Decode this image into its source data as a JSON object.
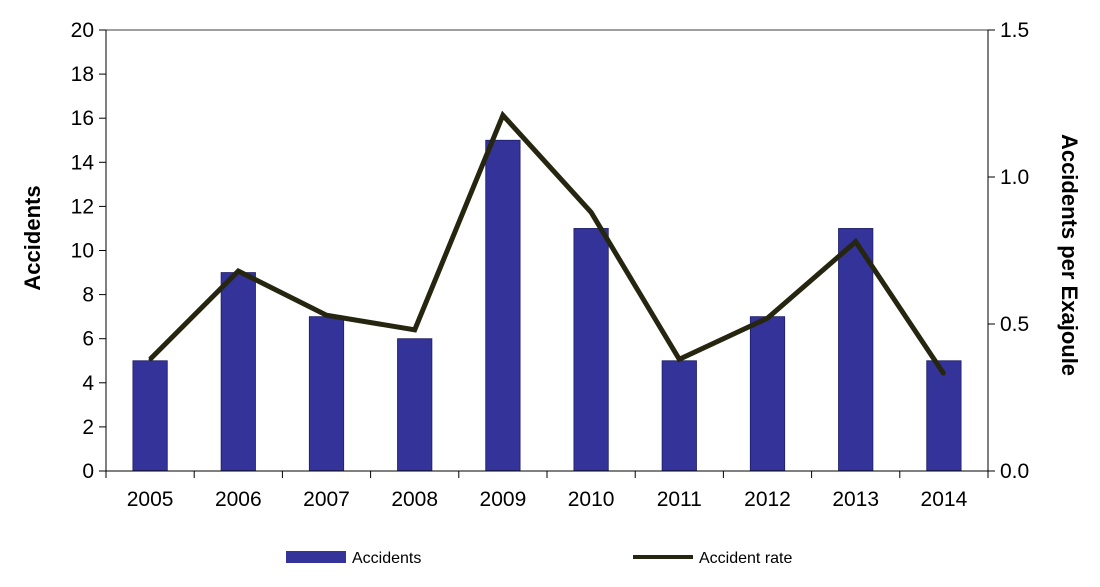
{
  "chart_data": {
    "type": "bar",
    "categories": [
      "2005",
      "2006",
      "2007",
      "2008",
      "2009",
      "2010",
      "2011",
      "2012",
      "2013",
      "2014"
    ],
    "series": [
      {
        "name": "Accidents",
        "type": "bar",
        "axis": "left",
        "color": "#333399",
        "values": [
          5,
          9,
          7,
          6,
          15,
          11,
          5,
          7,
          11,
          5
        ]
      },
      {
        "name": "Accident rate",
        "type": "line",
        "axis": "right",
        "color": "#262610",
        "values": [
          0.38,
          0.68,
          0.53,
          0.48,
          1.21,
          0.88,
          0.38,
          0.52,
          0.78,
          0.33
        ]
      }
    ],
    "ylabel": "Accidents",
    "ylabel_right": "Accidents per Exajoule",
    "ylim": [
      0,
      20
    ],
    "ylim_right": [
      0,
      1.5
    ],
    "yticks": [
      "0",
      "2",
      "4",
      "6",
      "8",
      "10",
      "12",
      "14",
      "16",
      "18",
      "20"
    ],
    "yticks_right": [
      "0.0",
      "0.5",
      "1.0",
      "1.5"
    ],
    "grid": false,
    "legend_position": "bottom"
  }
}
